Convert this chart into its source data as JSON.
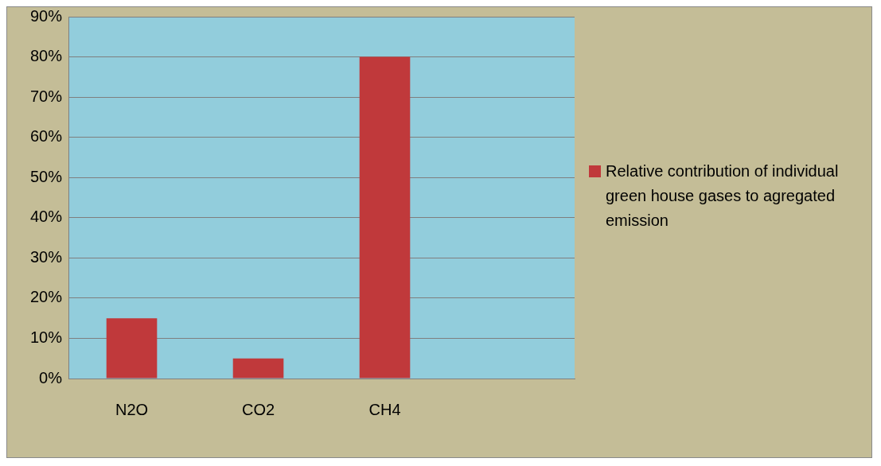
{
  "chart_data": {
    "type": "bar",
    "categories": [
      "N2O",
      "CO2",
      "CH4",
      null
    ],
    "series": [
      {
        "name": "Relative contribution of individual green house gases to agregated emission",
        "color": "#c0393b",
        "values": [
          15,
          5,
          80,
          null
        ]
      }
    ],
    "ylim": [
      0,
      90
    ],
    "yticks": [
      {
        "value": 0,
        "label": "0%"
      },
      {
        "value": 10,
        "label": "10%"
      },
      {
        "value": 20,
        "label": "20%"
      },
      {
        "value": 30,
        "label": "30%"
      },
      {
        "value": 40,
        "label": "40%"
      },
      {
        "value": 50,
        "label": "50%"
      },
      {
        "value": 60,
        "label": "60%"
      },
      {
        "value": 70,
        "label": "70%"
      },
      {
        "value": 80,
        "label": "80%"
      },
      {
        "value": 90,
        "label": "90%"
      }
    ],
    "grid": "y",
    "legend": "right"
  }
}
